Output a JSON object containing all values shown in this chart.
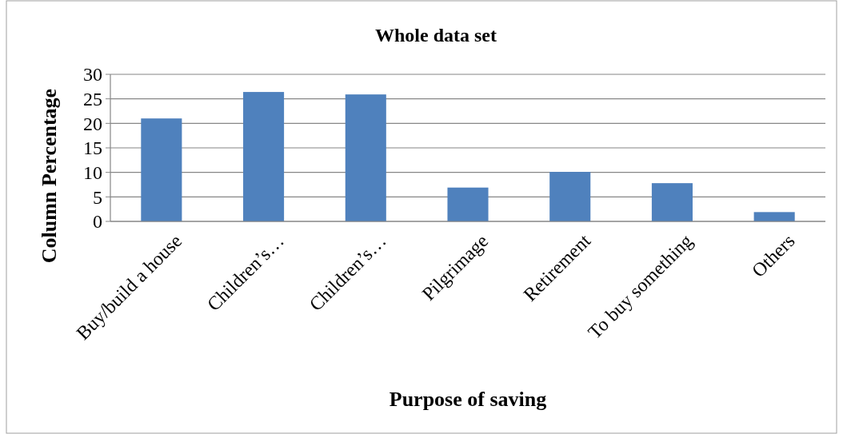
{
  "chart_data": {
    "type": "bar",
    "title": "Whole data set",
    "xlabel": "Purpose of saving",
    "ylabel": "Column Percentage",
    "categories": [
      "Buy/build a house",
      "Children’s…",
      "Children’s…",
      "Pilgrimage",
      "Retirement",
      "To buy something",
      "Others"
    ],
    "values": [
      21,
      26.4,
      25.9,
      6.9,
      10.1,
      7.8,
      1.9
    ],
    "color": "#4f81bd",
    "ylim": [
      0,
      30
    ],
    "yticks": [
      0,
      5,
      10,
      15,
      20,
      25,
      30
    ],
    "grid": "y"
  }
}
